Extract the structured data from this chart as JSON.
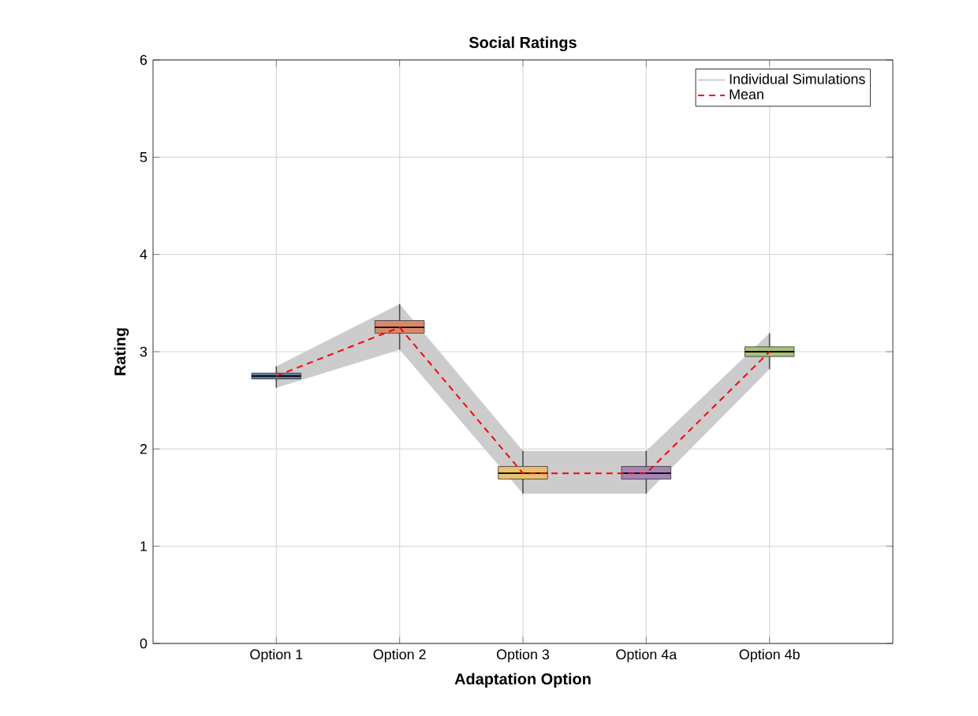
{
  "chart_data": {
    "type": "box",
    "title": "Social Ratings",
    "xlabel": "Adaptation Option",
    "ylabel": "Rating",
    "categories": [
      "Option 1",
      "Option 2",
      "Option 3",
      "Option 4a",
      "Option 4b"
    ],
    "boxes": [
      {
        "low": 2.63,
        "q1": 2.72,
        "median": 2.75,
        "q3": 2.78,
        "high": 2.85
      },
      {
        "low": 3.02,
        "q1": 3.19,
        "median": 3.25,
        "q3": 3.32,
        "high": 3.49
      },
      {
        "low": 1.54,
        "q1": 1.69,
        "median": 1.75,
        "q3": 1.82,
        "high": 1.98
      },
      {
        "low": 1.54,
        "q1": 1.69,
        "median": 1.75,
        "q3": 1.82,
        "high": 1.98
      },
      {
        "low": 2.82,
        "q1": 2.95,
        "median": 3.0,
        "q3": 3.05,
        "high": 3.19
      }
    ],
    "colors": [
      "#5b7a99",
      "#d9896a",
      "#e8c16f",
      "#a585b5",
      "#a8bf7a"
    ],
    "series": [
      {
        "name": "Individual Simulations",
        "type": "line",
        "color": "#cccccc",
        "values": [
          null,
          null,
          null,
          null,
          null
        ],
        "lower": [
          2.63,
          3.02,
          1.54,
          1.54,
          2.82
        ],
        "upper": [
          2.85,
          3.49,
          1.98,
          1.98,
          3.19
        ]
      },
      {
        "name": "Mean",
        "type": "line",
        "color": "#ff0000",
        "line_style": "dashed",
        "marker": "none",
        "values": [
          2.75,
          3.25,
          1.75,
          1.75,
          3.0
        ]
      }
    ],
    "ylim": [
      0,
      6
    ],
    "yticks": [
      0,
      1,
      2,
      3,
      4,
      5,
      6
    ],
    "grid": true,
    "legend": "top right"
  }
}
